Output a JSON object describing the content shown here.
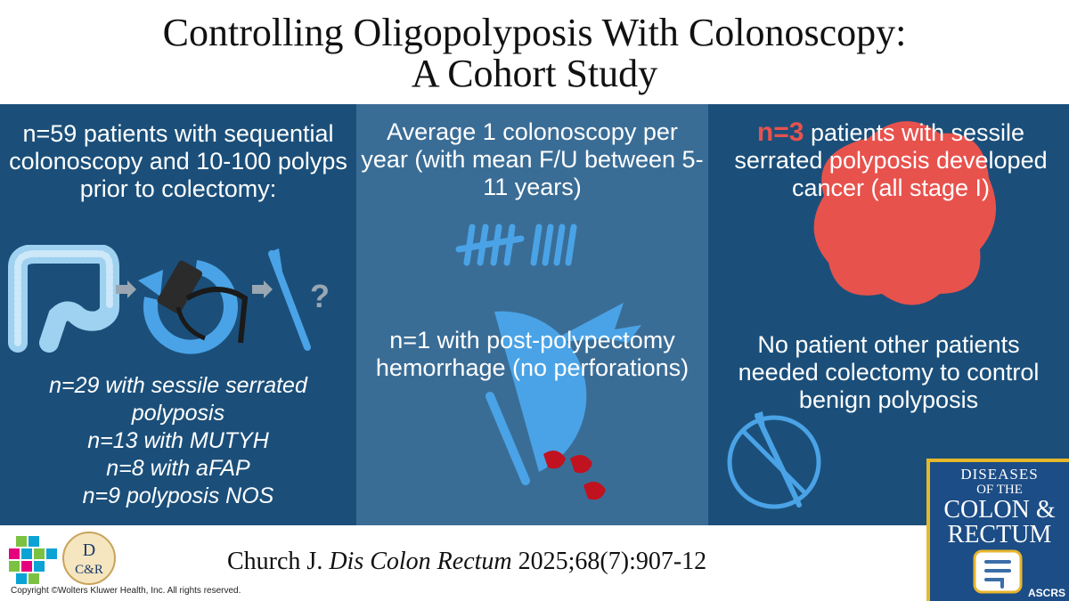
{
  "title": {
    "line1": "Controlling Oligopolyposis With Colonoscopy:",
    "line2": "A Cohort Study"
  },
  "left": {
    "intro": "n=59 patients with sequential colonoscopy and 10-100 polyps prior to colectomy:",
    "question_mark": "?",
    "breakdown": [
      "n=29 with sessile serrated",
      "polyposis",
      "n=13 with MUTYH",
      "n=8 with aFAP",
      "n=9 polyposis NOS"
    ]
  },
  "middle": {
    "frequency": "Average 1 colonoscopy per year (with mean F/U between 5-11 years)",
    "hemorrhage": "n=1 with post-polypectomy hemorrhage (no perforations)"
  },
  "right": {
    "cancer_count": "n=3",
    "cancer_text": "patients with sessile serrated polyposis developed cancer (all stage I)",
    "colectomy": "No patient other patients needed colectomy to control benign polyposis"
  },
  "citation": {
    "author": "Church J.",
    "journal": "Dis Colon Rectum",
    "ref": "2025;68(7):907-12"
  },
  "copyright": "Copyright ©Wolters Kluwer Health, Inc. All rights reserved.",
  "logo_dcr": {
    "top": "D",
    "bottom": "C&R"
  },
  "journal_cover": {
    "line1": "DISEASES",
    "line2": "OF THE",
    "line3": "COLON &",
    "line4": "RECTUM",
    "society": "ASCRS"
  },
  "colors": {
    "panel_dark": "#1b4f7a",
    "panel_mid": "#3a6d96",
    "icon_blue": "#4aa3e6",
    "alert_red": "#e8524d",
    "blood_red": "#c1121f"
  }
}
